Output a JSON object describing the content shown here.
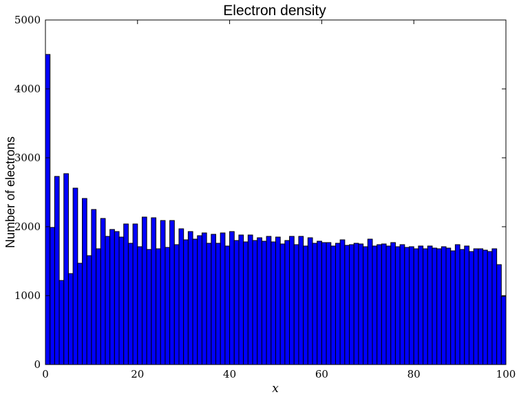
{
  "chart_data": {
    "type": "bar",
    "title": "Electron density",
    "xlabel": "x",
    "ylabel": "Number of electrons",
    "xlim": [
      0,
      100
    ],
    "ylim": [
      0,
      5000
    ],
    "xticks": [
      "0",
      "20",
      "40",
      "60",
      "80",
      "100"
    ],
    "yticks": [
      "0",
      "1000",
      "2000",
      "3000",
      "4000",
      "5000"
    ],
    "bin_width": 1,
    "bar_color": "#0000ff",
    "edge_color": "#000000",
    "grid": false,
    "series": [
      {
        "values": [
          4500,
          1990,
          2730,
          1220,
          2770,
          1320,
          2560,
          1470,
          2410,
          1580,
          2250,
          1680,
          2120,
          1860,
          1960,
          1930,
          1850,
          2040,
          1760,
          2040,
          1710,
          2140,
          1670,
          2130,
          1680,
          2090,
          1700,
          2090,
          1740,
          1970,
          1810,
          1930,
          1820,
          1870,
          1910,
          1760,
          1890,
          1760,
          1910,
          1720,
          1930,
          1800,
          1880,
          1780,
          1880,
          1800,
          1840,
          1790,
          1860,
          1780,
          1850,
          1750,
          1800,
          1860,
          1740,
          1860,
          1720,
          1840,
          1760,
          1790,
          1770,
          1770,
          1720,
          1760,
          1810,
          1730,
          1740,
          1760,
          1750,
          1710,
          1820,
          1720,
          1740,
          1750,
          1720,
          1770,
          1710,
          1740,
          1700,
          1710,
          1680,
          1720,
          1680,
          1720,
          1690,
          1680,
          1710,
          1690,
          1650,
          1740,
          1670,
          1720,
          1640,
          1680,
          1680,
          1660,
          1640,
          1680,
          1450,
          990
        ]
      }
    ]
  }
}
